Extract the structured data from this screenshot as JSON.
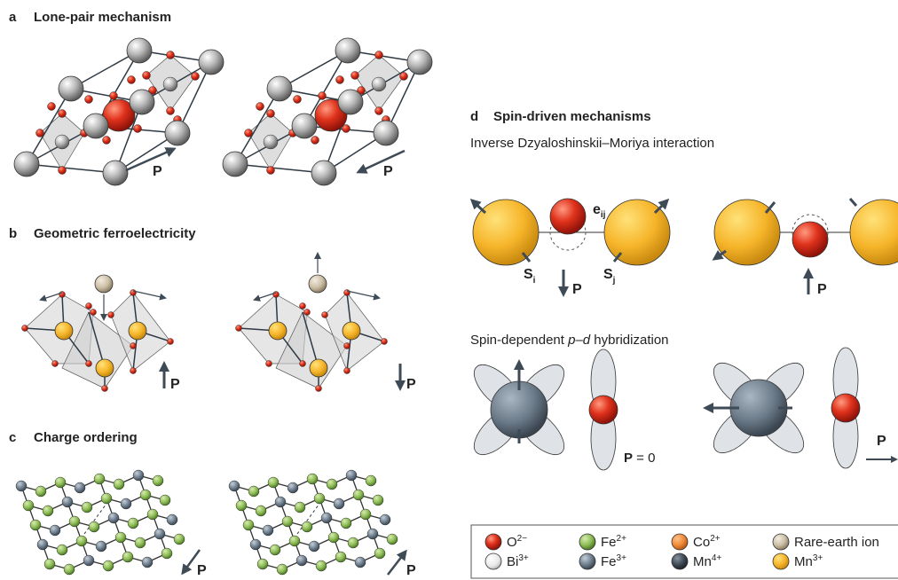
{
  "panel_a": {
    "letter": "a",
    "title": "Lone-pair mechanism",
    "p_left": "P",
    "p_right": "P"
  },
  "panel_b": {
    "letter": "b",
    "title": "Geometric ferroelectricity",
    "p_left": "P",
    "p_right": "P"
  },
  "panel_c": {
    "letter": "c",
    "title": "Charge ordering",
    "p_left": "P",
    "p_right": "P"
  },
  "panel_d": {
    "letter": "d",
    "title": "Spin-driven mechanisms",
    "dm_title": "Inverse Dzyaloshinskii–Moriya interaction",
    "e_label": {
      "main": "e",
      "sub": "ij"
    },
    "s_i": {
      "main": "S",
      "sub": "i"
    },
    "s_j": {
      "main": "S",
      "sub": "j"
    },
    "dm_p_left": "P",
    "dm_p_right": "P",
    "pd_title": [
      "Spin-dependent ",
      "p",
      "–",
      "d",
      " hybridization"
    ],
    "pd_p_zero": [
      "P",
      " = 0"
    ],
    "pd_p_right": "P"
  },
  "legend": [
    {
      "symbol": "O",
      "charge": "2−"
    },
    {
      "symbol": "Fe",
      "charge": "2+"
    },
    {
      "symbol": "Co",
      "charge": "2+"
    },
    {
      "symbol": "Rare-earth ion",
      "charge": null
    },
    {
      "symbol": "Bi",
      "charge": "3+"
    },
    {
      "symbol": "Fe",
      "charge": "3+"
    },
    {
      "symbol": "Mn",
      "charge": "4+"
    },
    {
      "symbol": "Mn",
      "charge": "3+"
    }
  ]
}
